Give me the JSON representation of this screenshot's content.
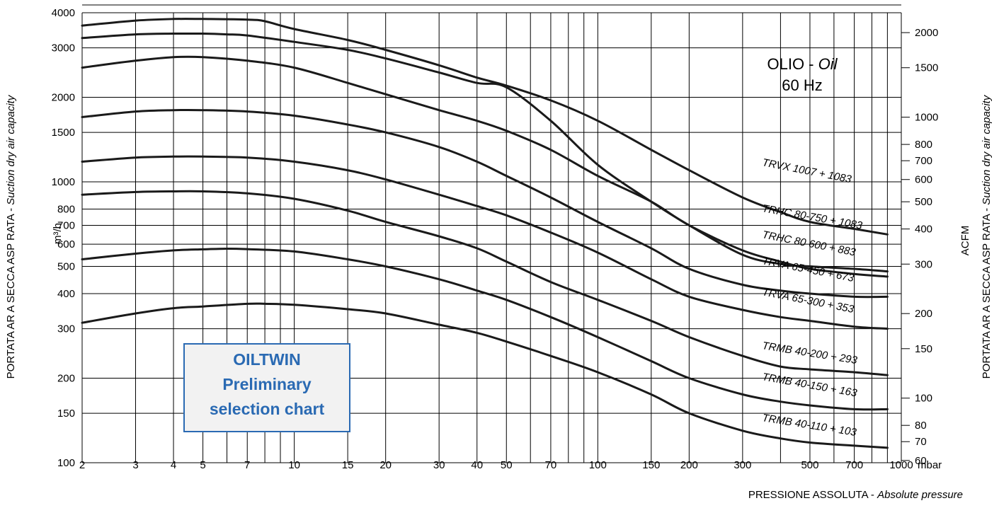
{
  "chart_data": {
    "type": "line",
    "x_scale": "log",
    "y_scale": "log",
    "xlim": [
      2,
      1000
    ],
    "ylim": [
      100,
      4000
    ],
    "y2lim_acfm": [
      58.9,
      2354
    ],
    "x_ticks": [
      "2",
      "3",
      "4",
      "5",
      "7",
      "10",
      "15",
      "20",
      "30",
      "40",
      "50",
      "70",
      "100",
      "150",
      "200",
      "300",
      "500",
      "700",
      "1000"
    ],
    "x_tick_values": [
      2,
      3,
      4,
      5,
      7,
      10,
      15,
      20,
      30,
      40,
      50,
      70,
      100,
      150,
      200,
      300,
      500,
      700,
      1000
    ],
    "x_minor_lines": [
      6,
      8,
      9,
      60,
      80,
      90,
      400,
      600,
      800,
      900
    ],
    "y_ticks": [
      "100",
      "150",
      "200",
      "300",
      "400",
      "500",
      "600",
      "700",
      "800",
      "1000",
      "1500",
      "2000",
      "3000",
      "4000"
    ],
    "y_tick_values": [
      100,
      150,
      200,
      300,
      400,
      500,
      600,
      700,
      800,
      1000,
      1500,
      2000,
      3000,
      4000
    ],
    "y2_ticks": [
      "60",
      "70",
      "80",
      "100",
      "150",
      "200",
      "300",
      "400",
      "500",
      "600",
      "700",
      "800",
      "1000",
      "1500",
      "2000"
    ],
    "y2_tick_values": [
      60,
      70,
      80,
      100,
      150,
      200,
      300,
      400,
      500,
      600,
      700,
      800,
      1000,
      1500,
      2000
    ],
    "x_unit": "mbar",
    "y_unit": "m³/h",
    "y2_unit": "ACFM",
    "xlabel_main": "PRESSIONE ASSOLUTA - ",
    "xlabel_italic": "Absolute pressure",
    "ylabel_main": "PORTATA AR A SECCA ASP RATA - ",
    "ylabel_italic": "Suction dry air capacity",
    "annotation_line1_main": "OLIO - ",
    "annotation_line1_italic": "Oil",
    "annotation_line2": "60 Hz",
    "box_lines": [
      "OILTWIN",
      "Preliminary",
      "selection chart"
    ],
    "series": [
      {
        "name": "TRVX 1007 + 1083",
        "x": [
          2,
          3,
          4,
          5,
          7,
          8,
          10,
          15,
          20,
          30,
          40,
          50,
          70,
          100,
          150,
          200,
          300,
          400,
          500,
          700,
          900
        ],
        "y": [
          3600,
          3750,
          3800,
          3800,
          3780,
          3730,
          3500,
          3200,
          2950,
          2600,
          2350,
          2200,
          1950,
          1650,
          1300,
          1100,
          880,
          780,
          720,
          680,
          650
        ]
      },
      {
        "name": "TRHC 80-750 + 1083",
        "x": [
          2,
          3,
          4,
          5,
          6,
          7,
          10,
          15,
          20,
          30,
          40,
          50,
          70,
          100,
          150,
          200,
          300,
          400,
          500,
          700,
          900
        ],
        "y": [
          3250,
          3350,
          3370,
          3370,
          3350,
          3320,
          3150,
          2950,
          2750,
          2450,
          2250,
          2170,
          1650,
          1150,
          850,
          700,
          550,
          510,
          500,
          490,
          480
        ]
      },
      {
        "name": "TRHC 80 600 + 883",
        "x": [
          2,
          3,
          4,
          5,
          7,
          10,
          15,
          20,
          30,
          40,
          50,
          70,
          100,
          150,
          200,
          300,
          400,
          500,
          700,
          900
        ],
        "y": [
          2550,
          2700,
          2780,
          2780,
          2700,
          2550,
          2250,
          2050,
          1800,
          1650,
          1520,
          1300,
          1050,
          850,
          700,
          570,
          520,
          490,
          470,
          460
        ]
      },
      {
        "name": "TRVA 65-450 + 673",
        "x": [
          2,
          3,
          4,
          5,
          7,
          10,
          15,
          20,
          30,
          40,
          50,
          70,
          100,
          150,
          200,
          300,
          400,
          500,
          700,
          900
        ],
        "y": [
          1700,
          1780,
          1800,
          1800,
          1780,
          1720,
          1600,
          1500,
          1330,
          1180,
          1050,
          880,
          720,
          580,
          490,
          430,
          410,
          400,
          390,
          390
        ]
      },
      {
        "name": "TRVA 65-300 + 353",
        "x": [
          2,
          3,
          4,
          5,
          7,
          10,
          15,
          20,
          30,
          40,
          50,
          70,
          100,
          150,
          200,
          300,
          400,
          500,
          700,
          900
        ],
        "y": [
          1180,
          1220,
          1230,
          1230,
          1220,
          1180,
          1100,
          1020,
          900,
          820,
          760,
          660,
          560,
          450,
          390,
          350,
          330,
          320,
          305,
          300
        ]
      },
      {
        "name": "TRMB 40-200 + 293",
        "x": [
          2,
          3,
          4,
          5,
          7,
          10,
          15,
          20,
          30,
          40,
          50,
          70,
          100,
          150,
          200,
          300,
          400,
          500,
          700,
          900
        ],
        "y": [
          900,
          920,
          925,
          925,
          910,
          870,
          790,
          720,
          640,
          580,
          520,
          440,
          380,
          320,
          280,
          240,
          220,
          215,
          210,
          205
        ]
      },
      {
        "name": "TRMB 40-150 + 163",
        "x": [
          2,
          3,
          4,
          5,
          6,
          7,
          10,
          15,
          20,
          30,
          40,
          50,
          70,
          100,
          150,
          200,
          300,
          400,
          500,
          700,
          900
        ],
        "y": [
          530,
          555,
          570,
          575,
          578,
          576,
          565,
          530,
          500,
          450,
          410,
          380,
          330,
          280,
          230,
          200,
          175,
          165,
          160,
          155,
          155
        ]
      },
      {
        "name": "TRMB 40-110 + 103",
        "x": [
          2,
          3,
          4,
          5,
          7,
          8,
          10,
          15,
          20,
          30,
          40,
          50,
          70,
          100,
          150,
          200,
          300,
          400,
          500,
          700,
          900
        ],
        "y": [
          315,
          340,
          355,
          360,
          368,
          368,
          365,
          352,
          340,
          310,
          290,
          270,
          240,
          210,
          175,
          150,
          130,
          122,
          118,
          115,
          113
        ]
      }
    ]
  }
}
